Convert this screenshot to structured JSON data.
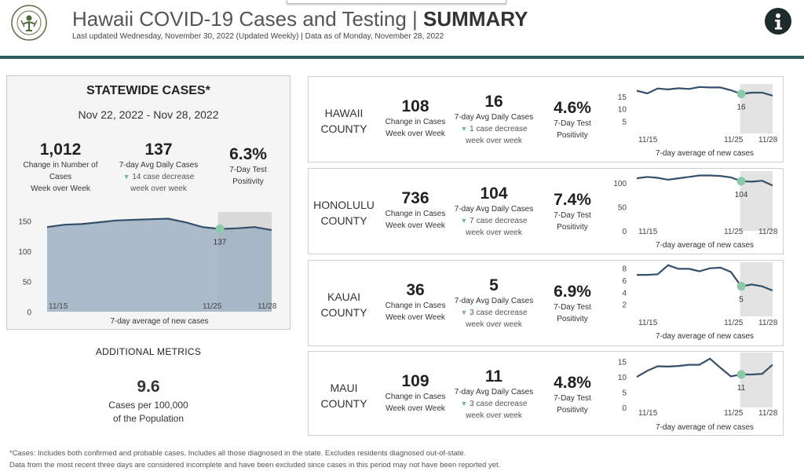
{
  "header": {
    "title_main": "Hawaii COVID-19 Cases and Testing |",
    "title_bold": "SUMMARY",
    "updated": "Last updated  Wednesday, November 30, 2022 (Updated Weekly) | Data as of Monday, November 28, 2022",
    "info_icon": "info-icon",
    "logo_text": "HAWAII STATE DEPARTMENT OF HEALTH"
  },
  "colors": {
    "rule": "#2f5c5a",
    "line": "#34506a",
    "area": "#9eb0c2",
    "marker": "#8cc9a8",
    "shade": "#d9d9d9",
    "down_triangle": "#6fb5a2"
  },
  "statewide": {
    "title": "STATEWIDE CASES*",
    "date_range": "Nov 22, 2022 - Nov 28, 2022",
    "cases_value": "1,012",
    "cases_label": [
      "Change in Number of",
      "Cases",
      "Week over Week"
    ],
    "avg_value": "137",
    "avg_label": "7-day Avg Daily Cases",
    "avg_change": "14 case decrease",
    "avg_change2": "week over week",
    "positivity_value": "6.3%",
    "positivity_label": [
      "7-Day Test",
      "Positivity"
    ],
    "chart_caption": "7-day average of new cases"
  },
  "additional": {
    "title": "ADDITIONAL METRICS",
    "value": "9.6",
    "label1": "Cases per 100,000",
    "label2": "of the Population"
  },
  "footnotes": [
    "*Cases: Includes both confirmed and probable cases. Includes all those diagnosed in the state. Excludes residents diagnosed out-of-state.",
    "Data from the most recent three days are considered incomplete and have been excluded since cases in this period may not have been reported yet."
  ],
  "counties": [
    {
      "name1": "HAWAII",
      "name2": "COUNTY",
      "cases_value": "108",
      "cases_label1": "Change in Cases",
      "cases_label2": "Week over Week",
      "avg_value": "16",
      "avg_label": "7-day Avg Daily Cases",
      "avg_change": "1 case decrease",
      "avg_change2": "week over week",
      "pos_value": "4.6%",
      "pos_label1": "7-Day Test",
      "pos_label2": "Positivity",
      "caption": "7-day average of new cases"
    },
    {
      "name1": "HONOLULU",
      "name2": "COUNTY",
      "cases_value": "736",
      "cases_label1": "Change in Cases",
      "cases_label2": "Week over Week",
      "avg_value": "104",
      "avg_label": "7-day Avg Daily Cases",
      "avg_change": "7 case decrease",
      "avg_change2": "week over week",
      "pos_value": "7.4%",
      "pos_label1": "7-Day Test",
      "pos_label2": "Positivity",
      "caption": "7-day average of new cases"
    },
    {
      "name1": "KAUAI",
      "name2": "COUNTY",
      "cases_value": "36",
      "cases_label1": "Change in Cases",
      "cases_label2": "Week over Week",
      "avg_value": "5",
      "avg_label": "7-day Avg Daily Cases",
      "avg_change": "3 case decrease",
      "avg_change2": "week over week",
      "pos_value": "6.9%",
      "pos_label1": "7-Day Test",
      "pos_label2": "Positivity",
      "caption": "7-day average of new cases"
    },
    {
      "name1": "MAUI",
      "name2": "COUNTY",
      "cases_value": "109",
      "cases_label1": "Change in Cases",
      "cases_label2": "Week over Week",
      "avg_value": "11",
      "avg_label": "7-day Avg Daily Cases",
      "avg_change": "3 case decrease",
      "avg_change2": "week over week",
      "pos_value": "4.8%",
      "pos_label1": "7-Day Test",
      "pos_label2": "Positivity",
      "caption": "7-day average of new cases"
    }
  ],
  "chart_data": [
    {
      "type": "area",
      "name": "statewide",
      "x_ticks": [
        "11/15",
        "11/25",
        "11/28"
      ],
      "values": [
        140,
        144,
        145,
        148,
        151,
        152,
        153,
        154,
        148,
        140,
        137,
        138,
        140,
        135
      ],
      "marker_index": 10,
      "marker_label": "137",
      "y_ticks": [
        0,
        50,
        100,
        150
      ],
      "ylim": [
        0,
        165
      ],
      "shaded_last": 4
    },
    {
      "type": "line",
      "name": "hawaii",
      "x_ticks": [
        "11/15",
        "11/25",
        "11/28"
      ],
      "values": [
        17.3,
        16.2,
        18.2,
        17.8,
        18.3,
        18.0,
        18.8,
        18.6,
        18.6,
        17.5,
        16.0,
        16.5,
        16.5,
        15.3
      ],
      "marker_index": 10,
      "marker_label": "16",
      "y_ticks": [
        5,
        10,
        15
      ],
      "ylim": [
        0,
        20
      ],
      "shaded_last": 4
    },
    {
      "type": "line",
      "name": "honolulu",
      "x_ticks": [
        "11/15",
        "11/25",
        "11/28"
      ],
      "values": [
        110,
        113,
        111,
        107,
        110,
        113,
        116,
        116,
        115,
        112,
        104,
        103,
        105,
        95
      ],
      "marker_index": 10,
      "marker_label": "104",
      "y_ticks": [
        0,
        50,
        100
      ],
      "ylim": [
        0,
        125
      ],
      "shaded_last": 4
    },
    {
      "type": "line",
      "name": "kauai",
      "x_ticks": [
        "11/15",
        "11/25",
        "11/28"
      ],
      "values": [
        6.9,
        6.9,
        7.0,
        8.5,
        7.9,
        7.9,
        7.5,
        8.0,
        8.1,
        7.4,
        5.0,
        5.3,
        5.0,
        4.3
      ],
      "marker_index": 10,
      "marker_label": "5",
      "y_ticks": [
        2,
        4,
        6,
        8
      ],
      "ylim": [
        0,
        9
      ],
      "shaded_last": 4
    },
    {
      "type": "line",
      "name": "maui",
      "x_ticks": [
        "11/15",
        "11/25",
        "11/28"
      ],
      "values": [
        10.0,
        12.0,
        13.5,
        13.4,
        13.6,
        14.0,
        14.0,
        16.0,
        13.0,
        10.2,
        10.8,
        10.8,
        11.0,
        14.0
      ],
      "marker_index": 10,
      "marker_label": "11",
      "y_ticks": [
        0,
        5,
        10,
        15
      ],
      "ylim": [
        0,
        18
      ],
      "shaded_last": 4
    }
  ]
}
